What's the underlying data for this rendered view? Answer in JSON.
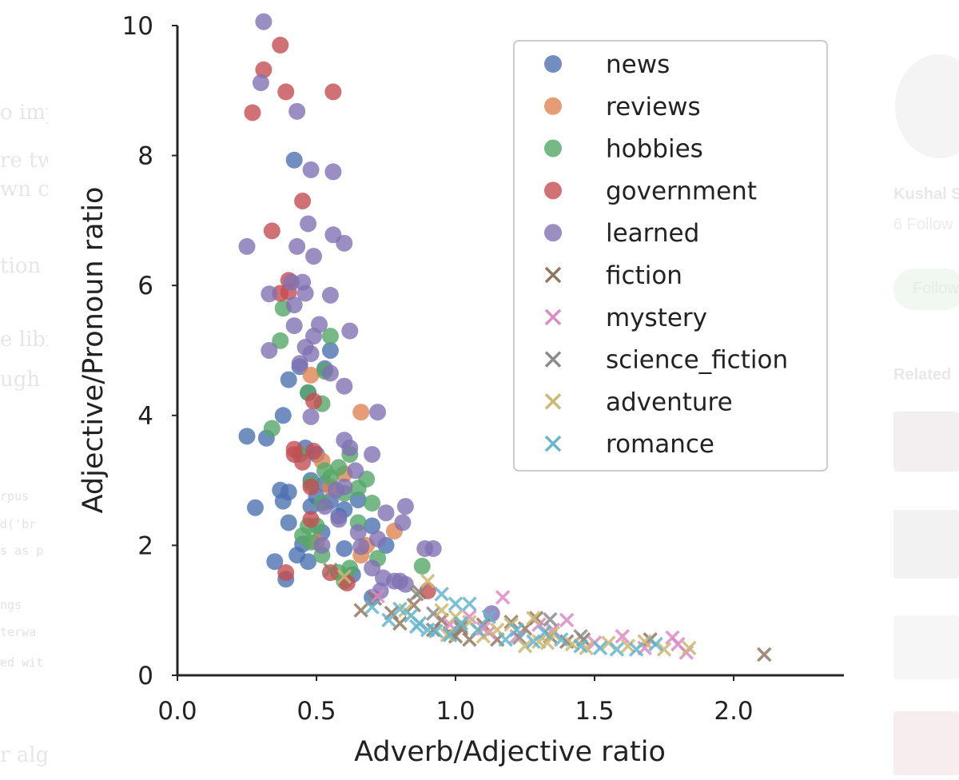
{
  "background": {
    "left_fragments": [
      {
        "text": "o imp",
        "style": "serif"
      },
      {
        "text": "re tw",
        "style": "serif"
      },
      {
        "text": "wn co",
        "style": "serif"
      },
      {
        "text": "tion",
        "style": "serif"
      },
      {
        "text": "e libr",
        "style": "serif"
      },
      {
        "text": "ugh N",
        "style": "serif"
      },
      {
        "text": "rpus",
        "style": "mono"
      },
      {
        "text": "d('br",
        "style": "mono"
      },
      {
        "text": "s as p",
        "style": "mono"
      },
      {
        "text": "ngs",
        "style": "mono"
      },
      {
        "text": "terwa",
        "style": "mono"
      },
      {
        "text": "ed wit",
        "style": "mono"
      },
      {
        "text": "r algo",
        "style": "serif"
      }
    ],
    "right_panel": {
      "author": "Kushal S",
      "followers": "6 Follow",
      "follow_button": "Follow",
      "related": "Related"
    }
  },
  "chart_data": {
    "type": "scatter",
    "title": "",
    "xlabel": "Adverb/Adjective ratio",
    "ylabel": "Adjective/Pronoun ratio",
    "xlim": [
      0.0,
      2.25
    ],
    "ylim": [
      0,
      10
    ],
    "xticks": [
      "0.0",
      "0.5",
      "1.0",
      "1.5",
      "2.0"
    ],
    "yticks": [
      "0",
      "2",
      "4",
      "6",
      "8",
      "10"
    ],
    "grid": false,
    "legend_position": "top-right",
    "series": [
      {
        "name": "news",
        "marker": "circle",
        "color": "#4c72b0",
        "points": [
          [
            0.42,
            7.93
          ],
          [
            0.25,
            3.68
          ],
          [
            0.28,
            2.58
          ],
          [
            0.32,
            3.65
          ],
          [
            0.37,
            2.85
          ],
          [
            0.38,
            2.68
          ],
          [
            0.4,
            2.82
          ],
          [
            0.4,
            2.35
          ],
          [
            0.39,
            1.48
          ],
          [
            0.43,
            1.85
          ],
          [
            0.4,
            4.55
          ],
          [
            0.38,
            4.0
          ],
          [
            0.45,
            2.02
          ],
          [
            0.46,
            3.5
          ],
          [
            0.48,
            2.6
          ],
          [
            0.5,
            2.75
          ],
          [
            0.52,
            2.2
          ],
          [
            0.55,
            2.68
          ],
          [
            0.58,
            2.45
          ],
          [
            0.55,
            5.0
          ],
          [
            0.53,
            4.72
          ],
          [
            0.5,
            3.4
          ],
          [
            0.47,
            4.35
          ],
          [
            0.6,
            2.55
          ],
          [
            0.65,
            2.7
          ],
          [
            0.47,
            1.75
          ],
          [
            0.35,
            1.75
          ],
          [
            0.6,
            1.95
          ],
          [
            0.7,
            2.3
          ],
          [
            0.75,
            2.0
          ],
          [
            0.63,
            1.55
          ],
          [
            0.7,
            1.2
          ],
          [
            0.48,
            3.0
          ],
          [
            0.53,
            2.95
          ],
          [
            0.44,
            4.75
          ]
        ]
      },
      {
        "name": "reviews",
        "marker": "circle",
        "color": "#dd8452",
        "points": [
          [
            0.48,
            4.62
          ],
          [
            0.66,
            4.05
          ],
          [
            0.6,
            3.1
          ],
          [
            0.55,
            2.9
          ],
          [
            0.78,
            2.22
          ],
          [
            0.66,
            1.85
          ],
          [
            0.5,
            2.05
          ],
          [
            0.52,
            3.3
          ],
          [
            0.68,
            2.0
          ]
        ]
      },
      {
        "name": "hobbies",
        "marker": "circle",
        "color": "#55a868",
        "points": [
          [
            0.38,
            5.65
          ],
          [
            0.37,
            5.15
          ],
          [
            0.55,
            5.22
          ],
          [
            0.34,
            3.8
          ],
          [
            0.47,
            4.35
          ],
          [
            0.52,
            4.18
          ],
          [
            0.53,
            4.68
          ],
          [
            0.44,
            3.4
          ],
          [
            0.48,
            2.95
          ],
          [
            0.5,
            2.3
          ],
          [
            0.52,
            2.65
          ],
          [
            0.55,
            3.05
          ],
          [
            0.58,
            3.2
          ],
          [
            0.6,
            2.8
          ],
          [
            0.62,
            3.4
          ],
          [
            0.65,
            2.88
          ],
          [
            0.68,
            3.02
          ],
          [
            0.7,
            2.65
          ],
          [
            0.47,
            2.3
          ],
          [
            0.52,
            1.85
          ],
          [
            0.58,
            1.58
          ],
          [
            0.6,
            1.45
          ],
          [
            0.65,
            2.35
          ],
          [
            0.88,
            1.68
          ],
          [
            0.72,
            1.8
          ],
          [
            0.45,
            2.15
          ],
          [
            0.53,
            3.15
          ],
          [
            0.48,
            2.05
          ],
          [
            0.62,
            1.65
          ]
        ]
      },
      {
        "name": "government",
        "marker": "circle",
        "color": "#c44e52",
        "points": [
          [
            0.37,
            9.7
          ],
          [
            0.31,
            9.32
          ],
          [
            0.27,
            8.66
          ],
          [
            0.39,
            8.98
          ],
          [
            0.56,
            8.98
          ],
          [
            0.45,
            7.3
          ],
          [
            0.34,
            6.84
          ],
          [
            0.4,
            6.08
          ],
          [
            0.4,
            5.9
          ],
          [
            0.37,
            5.88
          ],
          [
            0.49,
            4.22
          ],
          [
            0.42,
            3.48
          ],
          [
            0.45,
            3.28
          ],
          [
            0.49,
            3.45
          ],
          [
            0.48,
            2.9
          ],
          [
            0.48,
            2.4
          ],
          [
            0.55,
            1.58
          ],
          [
            0.39,
            1.58
          ],
          [
            0.61,
            1.42
          ],
          [
            0.9,
            1.3
          ],
          [
            0.42,
            3.4
          ]
        ]
      },
      {
        "name": "learned",
        "marker": "circle",
        "color": "#8172b3",
        "points": [
          [
            0.31,
            10.06
          ],
          [
            0.3,
            9.12
          ],
          [
            0.43,
            8.68
          ],
          [
            0.48,
            7.78
          ],
          [
            0.56,
            7.75
          ],
          [
            0.25,
            6.6
          ],
          [
            0.43,
            6.6
          ],
          [
            0.47,
            6.95
          ],
          [
            0.56,
            6.78
          ],
          [
            0.6,
            6.65
          ],
          [
            0.49,
            6.45
          ],
          [
            0.41,
            6.05
          ],
          [
            0.45,
            6.05
          ],
          [
            0.46,
            5.88
          ],
          [
            0.55,
            5.85
          ],
          [
            0.33,
            5.87
          ],
          [
            0.42,
            5.7
          ],
          [
            0.42,
            5.38
          ],
          [
            0.51,
            5.4
          ],
          [
            0.46,
            5.05
          ],
          [
            0.49,
            5.22
          ],
          [
            0.62,
            5.3
          ],
          [
            0.33,
            5.0
          ],
          [
            0.48,
            4.95
          ],
          [
            0.44,
            4.8
          ],
          [
            0.55,
            4.65
          ],
          [
            0.6,
            4.45
          ],
          [
            0.72,
            4.05
          ],
          [
            0.48,
            3.98
          ],
          [
            0.6,
            3.62
          ],
          [
            0.62,
            3.5
          ],
          [
            0.7,
            3.4
          ],
          [
            0.64,
            3.15
          ],
          [
            0.6,
            2.9
          ],
          [
            0.53,
            2.6
          ],
          [
            0.58,
            2.4
          ],
          [
            0.65,
            2.2
          ],
          [
            0.72,
            2.1
          ],
          [
            0.75,
            2.5
          ],
          [
            0.82,
            2.6
          ],
          [
            0.66,
            1.98
          ],
          [
            0.7,
            1.65
          ],
          [
            0.74,
            1.5
          ],
          [
            0.78,
            1.45
          ],
          [
            0.82,
            1.4
          ],
          [
            0.89,
            1.95
          ],
          [
            0.92,
            1.95
          ],
          [
            0.57,
            2.85
          ],
          [
            0.73,
            1.3
          ],
          [
            0.81,
            2.35
          ],
          [
            0.8,
            1.45
          ],
          [
            0.52,
            2.0
          ],
          [
            1.13,
            0.95
          ]
        ]
      },
      {
        "name": "fiction",
        "marker": "x",
        "color": "#937860",
        "points": [
          [
            2.11,
            0.32
          ],
          [
            0.66,
            1.0
          ],
          [
            0.71,
            1.18
          ],
          [
            0.77,
            0.96
          ],
          [
            0.8,
            0.8
          ],
          [
            0.85,
            1.08
          ],
          [
            0.87,
            1.28
          ],
          [
            0.92,
            0.7
          ],
          [
            0.95,
            0.85
          ],
          [
            0.98,
            0.65
          ],
          [
            1.0,
            0.6
          ],
          [
            1.02,
            0.72
          ],
          [
            1.05,
            0.55
          ],
          [
            1.1,
            0.78
          ],
          [
            1.15,
            0.55
          ],
          [
            1.2,
            0.82
          ],
          [
            1.25,
            0.72
          ],
          [
            1.29,
            0.88
          ],
          [
            1.34,
            0.6
          ],
          [
            1.4,
            0.52
          ],
          [
            1.46,
            0.55
          ],
          [
            1.7,
            0.55
          ],
          [
            0.55,
            1.62
          ]
        ]
      },
      {
        "name": "mystery",
        "marker": "x",
        "color": "#da8bc3",
        "points": [
          [
            1.83,
            0.35
          ],
          [
            1.17,
            1.2
          ],
          [
            1.4,
            0.85
          ],
          [
            1.05,
            0.9
          ],
          [
            0.98,
            0.78
          ],
          [
            1.22,
            0.6
          ],
          [
            1.3,
            0.78
          ],
          [
            1.5,
            0.5
          ],
          [
            1.6,
            0.6
          ],
          [
            1.78,
            0.58
          ],
          [
            1.8,
            0.48
          ],
          [
            1.68,
            0.42
          ],
          [
            1.12,
            0.66
          ],
          [
            0.72,
            1.22
          ],
          [
            1.35,
            0.7
          ],
          [
            1.1,
            0.72
          ]
        ]
      },
      {
        "name": "science_fiction",
        "marker": "x",
        "color": "#8c8c8c",
        "points": [
          [
            0.86,
            1.25
          ],
          [
            1.02,
            0.75
          ],
          [
            1.23,
            0.58
          ],
          [
            1.34,
            0.86
          ],
          [
            0.92,
            0.95
          ],
          [
            1.45,
            0.6
          ]
        ]
      },
      {
        "name": "adventure",
        "marker": "x",
        "color": "#ccb974",
        "points": [
          [
            1.84,
            0.42
          ],
          [
            0.6,
            1.52
          ],
          [
            0.9,
            1.45
          ],
          [
            0.95,
            1.0
          ],
          [
            1.0,
            0.9
          ],
          [
            1.05,
            0.82
          ],
          [
            1.1,
            0.6
          ],
          [
            1.15,
            0.7
          ],
          [
            1.2,
            0.78
          ],
          [
            1.25,
            0.45
          ],
          [
            1.3,
            0.52
          ],
          [
            1.35,
            0.65
          ],
          [
            1.42,
            0.48
          ],
          [
            1.47,
            0.42
          ],
          [
            1.55,
            0.5
          ],
          [
            1.62,
            0.45
          ],
          [
            1.68,
            0.52
          ],
          [
            1.75,
            0.4
          ],
          [
            0.82,
            1.0
          ],
          [
            1.28,
            0.88
          ],
          [
            0.97,
            0.62
          ],
          [
            1.33,
            0.5
          ]
        ]
      },
      {
        "name": "romance",
        "marker": "x",
        "color": "#64b5cd",
        "points": [
          [
            0.7,
            1.05
          ],
          [
            0.76,
            0.85
          ],
          [
            0.8,
            1.02
          ],
          [
            0.84,
            0.92
          ],
          [
            0.87,
            0.8
          ],
          [
            0.9,
            0.7
          ],
          [
            0.95,
            1.25
          ],
          [
            0.98,
            0.62
          ],
          [
            1.02,
            0.8
          ],
          [
            1.05,
            1.1
          ],
          [
            1.08,
            0.7
          ],
          [
            1.12,
            0.9
          ],
          [
            1.18,
            0.55
          ],
          [
            1.22,
            0.7
          ],
          [
            1.28,
            0.52
          ],
          [
            1.32,
            0.66
          ],
          [
            1.38,
            0.55
          ],
          [
            1.45,
            0.45
          ],
          [
            1.52,
            0.42
          ],
          [
            1.58,
            0.4
          ],
          [
            1.65,
            0.4
          ],
          [
            1.72,
            0.48
          ],
          [
            0.86,
            0.75
          ],
          [
            0.93,
            0.68
          ],
          [
            1.0,
            1.1
          ]
        ]
      }
    ]
  }
}
